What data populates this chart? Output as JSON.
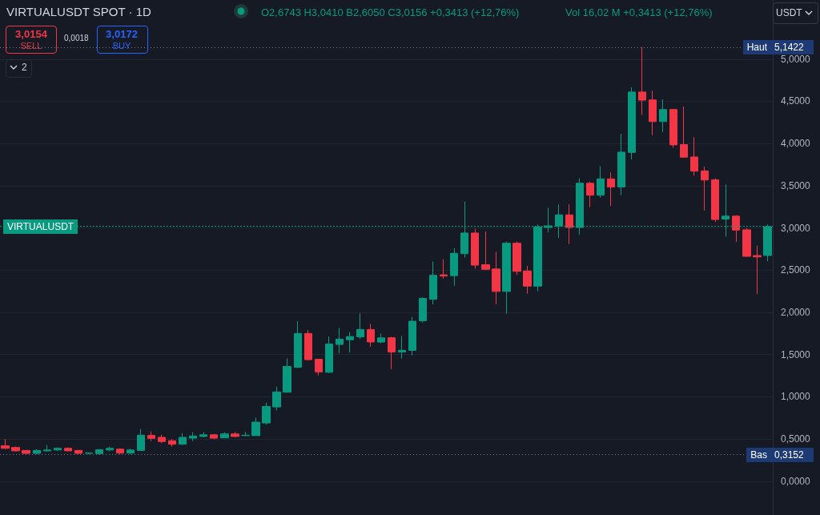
{
  "chart_data": {
    "type": "candlestick",
    "title": "VIRTUALUSDT SPOT · 1D",
    "annotations": [
      "O2,6743 H3,0410 B2,6050 C3,0156 +0,3413 (+12,76%)",
      "Vol 16,02 M +0,3413 (+12,76%)",
      "3,0154",
      "SELL",
      "0,0018",
      "3,0172",
      "BUY",
      "2",
      "USDT",
      "5,1422",
      "0,3152"
    ],
    "categories": [
      null,
      null,
      null,
      null,
      null,
      null,
      null,
      null,
      null,
      null,
      null,
      null,
      null,
      null,
      null,
      null,
      null,
      null,
      null,
      null,
      null,
      null,
      null,
      null,
      null,
      null,
      null,
      null,
      null,
      null,
      null,
      null,
      null,
      null,
      null,
      null,
      null,
      null,
      null,
      null,
      null,
      null,
      null,
      null,
      null,
      null,
      null,
      null,
      null,
      null,
      null,
      null,
      null,
      null,
      null,
      null,
      null,
      null,
      null,
      null,
      null,
      null,
      null,
      null,
      null,
      null,
      null,
      null,
      null,
      null,
      null,
      null,
      null,
      null
    ],
    "ohlc": [
      [
        0.42,
        0.5,
        0.38,
        0.39
      ],
      [
        0.4,
        0.41,
        0.35,
        0.36
      ],
      [
        0.365,
        0.37,
        0.32,
        0.33
      ],
      [
        0.33,
        0.38,
        0.32,
        0.365
      ],
      [
        0.36,
        0.43,
        0.35,
        0.37
      ],
      [
        0.37,
        0.4,
        0.36,
        0.39
      ],
      [
        0.39,
        0.4,
        0.355,
        0.36
      ],
      [
        0.365,
        0.37,
        0.32,
        0.33
      ],
      [
        0.33,
        0.34,
        0.32,
        0.335
      ],
      [
        0.327,
        0.38,
        0.3152,
        0.374
      ],
      [
        0.37,
        0.41,
        0.355,
        0.39
      ],
      [
        0.38,
        0.39,
        0.32,
        0.333
      ],
      [
        0.333,
        0.385,
        0.32,
        0.37
      ],
      [
        0.365,
        0.62,
        0.36,
        0.546
      ],
      [
        0.543,
        0.59,
        0.476,
        0.508
      ],
      [
        0.52,
        0.55,
        0.45,
        0.47
      ],
      [
        0.48,
        0.5,
        0.41,
        0.438
      ],
      [
        0.438,
        0.57,
        0.43,
        0.52
      ],
      [
        0.51,
        0.58,
        0.476,
        0.536
      ],
      [
        0.53,
        0.58,
        0.52,
        0.55
      ],
      [
        0.55,
        0.56,
        0.498,
        0.51
      ],
      [
        0.514,
        0.58,
        0.51,
        0.56
      ],
      [
        0.56,
        0.585,
        0.52,
        0.53
      ],
      [
        0.54,
        0.585,
        0.535,
        0.545
      ],
      [
        0.54,
        0.755,
        0.54,
        0.7
      ],
      [
        0.69,
        0.93,
        0.67,
        0.886
      ],
      [
        0.88,
        1.12,
        0.84,
        1.057
      ],
      [
        1.054,
        1.454,
        1.05,
        1.36
      ],
      [
        1.35,
        1.895,
        1.34,
        1.75
      ],
      [
        1.75,
        1.79,
        1.43,
        1.44
      ],
      [
        1.445,
        1.45,
        1.254,
        1.295
      ],
      [
        1.29,
        1.714,
        1.28,
        1.625
      ],
      [
        1.62,
        1.816,
        1.514,
        1.683
      ],
      [
        1.676,
        1.765,
        1.524,
        1.714
      ],
      [
        1.71,
        1.988,
        1.686,
        1.797
      ],
      [
        1.797,
        1.864,
        1.593,
        1.65
      ],
      [
        1.648,
        1.75,
        1.635,
        1.698
      ],
      [
        1.7,
        1.71,
        1.327,
        1.53
      ],
      [
        1.53,
        1.72,
        1.454,
        1.55
      ],
      [
        1.55,
        1.946,
        1.49,
        1.895
      ],
      [
        1.9,
        2.18,
        1.88,
        2.165
      ],
      [
        2.155,
        2.603,
        2.095,
        2.44
      ],
      [
        2.445,
        2.63,
        2.4,
        2.43
      ],
      [
        2.435,
        2.76,
        2.317,
        2.7
      ],
      [
        2.695,
        3.311,
        2.65,
        2.94
      ],
      [
        2.94,
        2.99,
        2.517,
        2.56
      ],
      [
        2.565,
        2.959,
        2.5,
        2.51
      ],
      [
        2.514,
        2.717,
        2.095,
        2.248
      ],
      [
        2.248,
        2.838,
        1.984,
        2.819
      ],
      [
        2.819,
        2.838,
        2.444,
        2.486
      ],
      [
        2.49,
        2.55,
        2.222,
        2.311
      ],
      [
        2.311,
        3.04,
        2.248,
        3.01
      ],
      [
        3.006,
        3.238,
        2.946,
        3.025
      ],
      [
        3.022,
        3.279,
        2.883,
        3.155
      ],
      [
        3.155,
        3.279,
        2.81,
        3.006
      ],
      [
        3.006,
        3.588,
        2.92,
        3.53
      ],
      [
        3.53,
        3.55,
        3.245,
        3.388
      ],
      [
        3.388,
        3.73,
        3.359,
        3.581
      ],
      [
        3.581,
        3.657,
        3.26,
        3.486
      ],
      [
        3.486,
        4.117,
        3.387,
        3.898
      ],
      [
        3.895,
        4.667,
        3.81,
        4.61
      ],
      [
        4.61,
        5.1422,
        4.34,
        4.514
      ],
      [
        4.517,
        4.625,
        4.1,
        4.26
      ],
      [
        4.26,
        4.524,
        4.136,
        4.403
      ],
      [
        4.403,
        4.41,
        3.952,
        3.984
      ],
      [
        3.987,
        4.438,
        3.83,
        3.838
      ],
      [
        3.841,
        4.076,
        3.619,
        3.673
      ],
      [
        3.676,
        3.727,
        3.206,
        3.568
      ],
      [
        3.571,
        3.587,
        3.07,
        3.1
      ],
      [
        3.105,
        3.514,
        2.898,
        3.14
      ],
      [
        3.14,
        3.15,
        2.835,
        2.975
      ],
      [
        2.978,
        2.997,
        2.66,
        2.664
      ],
      [
        2.673,
        2.79,
        2.216,
        2.657
      ],
      [
        2.6743,
        3.041,
        2.605,
        3.0156
      ]
    ],
    "colors": [
      "#f23645",
      "#f23645",
      "#f23645",
      "#089981",
      "#089981",
      "#089981",
      "#f23645",
      "#f23645",
      "#089981",
      "#089981",
      "#089981",
      "#f23645",
      "#089981",
      "#089981",
      "#f23645",
      "#f23645",
      "#f23645",
      "#089981",
      "#089981",
      "#089981",
      "#f23645",
      "#089981",
      "#f23645",
      "#089981",
      "#089981",
      "#089981",
      "#089981",
      "#089981",
      "#089981",
      "#f23645",
      "#f23645",
      "#089981",
      "#089981",
      "#089981",
      "#089981",
      "#f23645",
      "#089981",
      "#f23645",
      "#089981",
      "#089981",
      "#089981",
      "#089981",
      "#f23645",
      "#089981",
      "#089981",
      "#f23645",
      "#f23645",
      "#f23645",
      "#089981",
      "#f23645",
      "#f23645",
      "#089981",
      "#089981",
      "#089981",
      "#f23645",
      "#089981",
      "#f23645",
      "#089981",
      "#f23645",
      "#089981",
      "#089981",
      "#f23645",
      "#f23645",
      "#089981",
      "#f23645",
      "#f23645",
      "#f23645",
      "#f23645",
      "#f23645",
      "#089981",
      "#f23645",
      "#f23645",
      "#f23645",
      "#089981"
    ],
    "ylim": [
      -0.4,
      5.7
    ],
    "yticks": [
      {
        "value": 0,
        "label": "0,0000"
      },
      {
        "value": 0.5,
        "label": "0,5000"
      },
      {
        "value": 1,
        "label": "1,0000"
      },
      {
        "value": 1.5,
        "label": "1,5000"
      },
      {
        "value": 2,
        "label": "2,0000"
      },
      {
        "value": 2.5,
        "label": "2,5000"
      },
      {
        "value": 3,
        "label": "3,0000"
      },
      {
        "value": 3.5,
        "label": "3,5000"
      },
      {
        "value": 4,
        "label": "4,0000"
      },
      {
        "value": 4.5,
        "label": "4,5000"
      },
      {
        "value": 5,
        "label": "5,0000"
      }
    ],
    "ref_lines": [
      {
        "axis": "y",
        "value": 5.1422,
        "label": "Haut",
        "color": "#787b86",
        "line_style": "dotted"
      },
      {
        "axis": "y",
        "value": 0.3152,
        "label": "Bas",
        "color": "#787b86",
        "line_style": "dotted"
      },
      {
        "axis": "y",
        "value": 3.0156,
        "label": "VIRTUALUSDT",
        "color": "#089981",
        "line_style": "dashed"
      }
    ],
    "grid": "y",
    "tick_labels": "y"
  }
}
